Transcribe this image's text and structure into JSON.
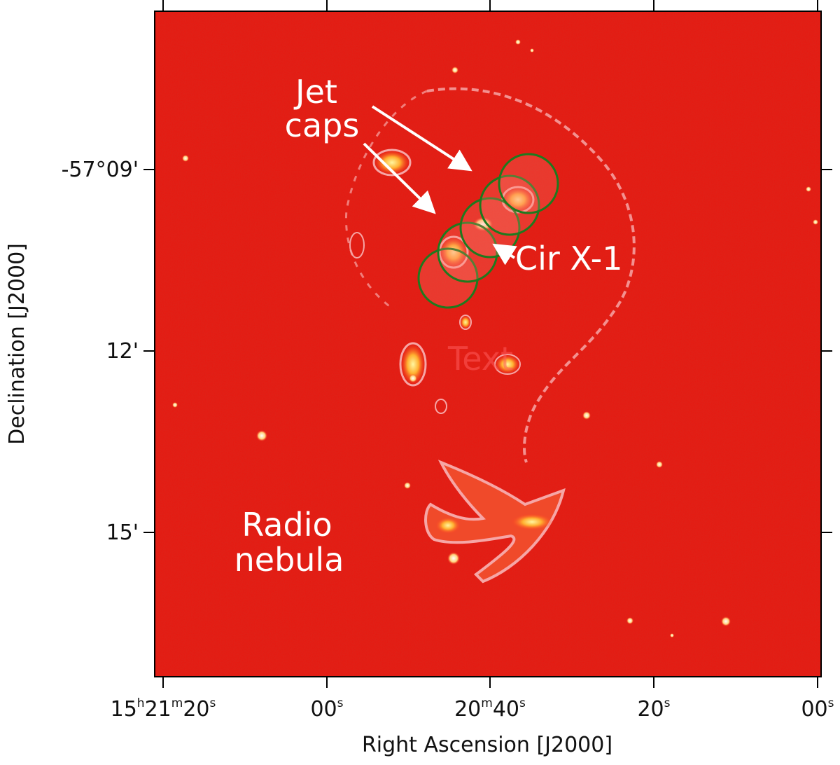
{
  "figure": {
    "x_axis": {
      "label": "Right Ascension [J2000]",
      "ticks": [
        {
          "h": "15",
          "hs": "h",
          "m": "21",
          "ms": "m",
          "s": "20",
          "ss": "s"
        },
        {
          "s": "00",
          "ss": "s"
        },
        {
          "m": "20",
          "ms": "m",
          "s": "40",
          "ss": "s"
        },
        {
          "s": "20",
          "ss": "s"
        },
        {
          "s": "00",
          "ss": "s"
        }
      ]
    },
    "y_axis": {
      "label": "Declination [J2000]",
      "ticks": [
        "-57°09'",
        "12'",
        "15'"
      ]
    },
    "annotations": {
      "jet_caps_line1": "Jet",
      "jet_caps_line2": "caps",
      "cir_x1": "Cir X-1",
      "radio_nebula_line1": "Radio",
      "radio_nebula_line2": "nebula",
      "faint_text": "Text"
    },
    "colors": {
      "background_map": "#e8170f",
      "contour": "#f6a6a6",
      "region_circles": "#1e7a1e",
      "annotation_text": "#ffffff"
    }
  }
}
